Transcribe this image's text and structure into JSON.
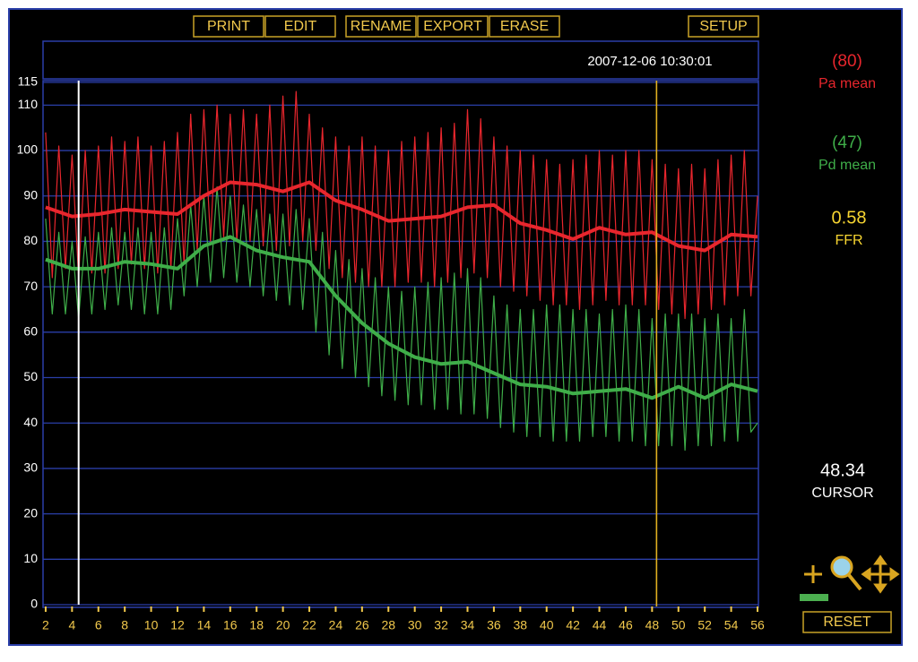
{
  "toolbar": {
    "buttons": [
      "PRINT",
      "EDIT",
      "RENAME",
      "EXPORT",
      "ERASE",
      "SETUP"
    ]
  },
  "timestamp": "2007-12-06 10:30:01",
  "ffr": {
    "value": 0.58,
    "label": "FFR"
  },
  "cursor_label": "CURSOR",
  "reset": "RESET",
  "chart_data": {
    "type": "line",
    "xlim": [
      1.8,
      56
    ],
    "xticks": [
      2,
      4,
      6,
      8,
      10,
      12,
      14,
      16,
      18,
      20,
      22,
      24,
      26,
      28,
      30,
      32,
      34,
      36,
      38,
      40,
      42,
      44,
      46,
      48,
      50,
      52,
      54,
      56
    ],
    "ylim": [
      0,
      115
    ],
    "yticks": [
      0,
      10,
      20,
      30,
      40,
      50,
      60,
      70,
      80,
      90,
      100,
      110,
      115
    ],
    "grid": true,
    "cursor": 48.34,
    "left_cursor": 4.5,
    "x": [
      2,
      2.5,
      3,
      3.5,
      4,
      4.5,
      5,
      5.5,
      6,
      6.5,
      7,
      7.5,
      8,
      8.5,
      9,
      9.5,
      10,
      10.5,
      11,
      11.5,
      12,
      12.5,
      13,
      13.5,
      14,
      14.5,
      15,
      15.5,
      16,
      16.5,
      17,
      17.5,
      18,
      18.5,
      19,
      19.5,
      20,
      20.5,
      21,
      21.5,
      22,
      22.5,
      23,
      23.5,
      24,
      24.5,
      25,
      25.5,
      26,
      26.5,
      27,
      27.5,
      28,
      28.5,
      29,
      29.5,
      30,
      30.5,
      31,
      31.5,
      32,
      32.5,
      33,
      33.5,
      34,
      34.5,
      35,
      35.5,
      36,
      36.5,
      37,
      37.5,
      38,
      38.5,
      39,
      39.5,
      40,
      40.5,
      41,
      41.5,
      42,
      42.5,
      43,
      43.5,
      44,
      44.5,
      45,
      45.5,
      46,
      46.5,
      47,
      47.5,
      48,
      48.5,
      49,
      49.5,
      50,
      50.5,
      51,
      51.5,
      52,
      52.5,
      53,
      53.5,
      54,
      54.5,
      55,
      55.5,
      56
    ],
    "series": [
      {
        "color": "#e8262d",
        "width": 1.2,
        "values": [
          104,
          72,
          101,
          74,
          99,
          72,
          100,
          73,
          101,
          73,
          103,
          74,
          102,
          75,
          103,
          74,
          101,
          73,
          102,
          74,
          104,
          75,
          108,
          78,
          109,
          80,
          110,
          81,
          108,
          80,
          109,
          80,
          108,
          79,
          110,
          78,
          112,
          79,
          113,
          80,
          108,
          78,
          105,
          74,
          103,
          72,
          101,
          71,
          103,
          70,
          101,
          70,
          100,
          70,
          102,
          71,
          103,
          71,
          104,
          70,
          105,
          71,
          106,
          72,
          109,
          73,
          107,
          72,
          103,
          70,
          101,
          69,
          100,
          68,
          99,
          67,
          98,
          66,
          97,
          66,
          98,
          65,
          99,
          66,
          100,
          67,
          99,
          66,
          100,
          66,
          100,
          66,
          98,
          65,
          97,
          64,
          96,
          63,
          97,
          64,
          96,
          65,
          98,
          66,
          99,
          68,
          100,
          68,
          90
        ]
      },
      {
        "color": "#3fae49",
        "width": 1.2,
        "values": [
          85,
          64,
          82,
          64,
          80,
          63,
          81,
          64,
          82,
          65,
          83,
          66,
          82,
          65,
          83,
          64,
          82,
          64,
          83,
          65,
          85,
          68,
          88,
          70,
          90,
          71,
          92,
          72,
          90,
          71,
          88,
          70,
          87,
          68,
          86,
          67,
          86,
          66,
          87,
          65,
          85,
          60,
          82,
          55,
          78,
          52,
          76,
          50,
          74,
          48,
          72,
          46,
          70,
          45,
          69,
          44,
          70,
          44,
          71,
          43,
          72,
          43,
          73,
          42,
          74,
          42,
          72,
          41,
          68,
          39,
          66,
          38,
          65,
          37,
          65,
          37,
          66,
          36,
          66,
          36,
          65,
          36,
          65,
          37,
          64,
          37,
          65,
          36,
          66,
          36,
          65,
          35,
          63,
          35,
          64,
          35,
          64,
          34,
          64,
          35,
          63,
          35,
          64,
          36,
          63,
          36,
          65,
          38,
          40
        ]
      },
      {
        "name": "Pa mean",
        "color": "#e8262d",
        "width": 4,
        "mean": {
          "value": 80,
          "label": "(80)"
        },
        "x": [
          2,
          4,
          6,
          8,
          10,
          12,
          14,
          16,
          18,
          20,
          22,
          24,
          26,
          28,
          30,
          32,
          34,
          36,
          38,
          40,
          42,
          44,
          46,
          48,
          50,
          52,
          54,
          56
        ],
        "values": [
          87.5,
          85.5,
          86,
          87,
          86.5,
          86,
          90,
          93,
          92.5,
          91,
          93,
          89,
          87,
          84.5,
          85,
          85.5,
          87.5,
          88,
          84,
          82.5,
          80.5,
          83,
          81.5,
          82,
          79,
          78,
          81.5,
          81
        ]
      },
      {
        "name": "Pd mean",
        "color": "#3fae49",
        "width": 4,
        "mean": {
          "value": 47,
          "label": "(47)"
        },
        "x": [
          2,
          4,
          6,
          8,
          10,
          12,
          14,
          16,
          18,
          20,
          22,
          24,
          26,
          28,
          30,
          32,
          34,
          36,
          38,
          40,
          42,
          44,
          46,
          48,
          50,
          52,
          54,
          56
        ],
        "values": [
          76,
          74,
          74,
          75.5,
          75,
          74,
          79,
          81,
          78,
          76.5,
          75.5,
          68,
          62,
          57.5,
          54.5,
          53,
          53.5,
          51,
          48.5,
          48,
          46.5,
          47,
          47.5,
          45.5,
          48,
          45.5,
          48.5,
          47
        ]
      }
    ]
  }
}
